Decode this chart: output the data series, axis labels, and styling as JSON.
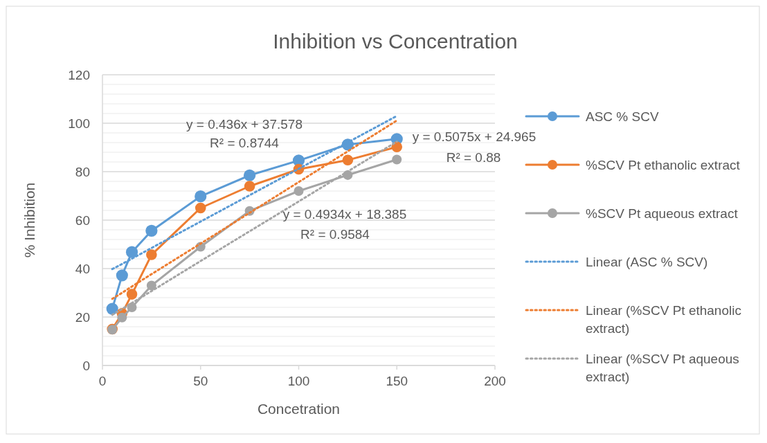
{
  "chart_data": {
    "type": "line",
    "title": "Inhibition vs Concentration",
    "xlabel": "Concetration",
    "ylabel": "% Inhibition",
    "x": [
      5,
      10,
      15,
      25,
      50,
      75,
      100,
      125,
      150
    ],
    "xlim": [
      0,
      200
    ],
    "xticks": [
      0,
      50,
      100,
      150,
      200
    ],
    "ylim": [
      0,
      120
    ],
    "yticks": [
      0,
      20,
      40,
      60,
      80,
      100,
      120
    ],
    "grid": "y",
    "legend": "right",
    "marker": "circle",
    "series": [
      {
        "name": "ASC % SCV",
        "color": "#5b9bd5",
        "values": [
          23.4,
          37.2,
          46.8,
          55.6,
          69.8,
          78.5,
          84.6,
          91.2,
          93.5
        ]
      },
      {
        "name": "%SCV Pt ethanolic extract",
        "color": "#ed7d31",
        "values": [
          15,
          21.5,
          29.4,
          45.7,
          65,
          74,
          81,
          84.8,
          90.2
        ]
      },
      {
        "name": "%SCV  Pt aqueous extract",
        "color": "#a5a5a5",
        "values": [
          14.8,
          19.8,
          24,
          33,
          49,
          63.8,
          72,
          78.6,
          85
        ]
      },
      {
        "name": "Linear (ASC % SCV)",
        "color": "#5b9bd5",
        "values": [
          39.8,
          41.9,
          44.1,
          48.5,
          59.4,
          70.3,
          81.2,
          92.1,
          103
        ],
        "line_style": "dotted",
        "marker": "none"
      },
      {
        "name": "Linear (%SCV Pt ethanolic extract)",
        "color": "#ed7d31",
        "values": [
          27.5,
          30,
          32.6,
          37.7,
          50.3,
          63,
          75.7,
          88.4,
          101.1
        ],
        "line_style": "dotted",
        "marker": "none"
      },
      {
        "name": "Linear (%SCV  Pt aqueous extract)",
        "color": "#a5a5a5",
        "values": [
          20.9,
          23.3,
          25.8,
          30.7,
          43.1,
          55.4,
          67.7,
          80.1,
          92.4
        ],
        "line_style": "dotted",
        "marker": "none"
      }
    ],
    "annotations": [
      "y = 0.436x + 37.578",
      "R² = 0.8744",
      "y = 0.5075x + 24.965",
      "R² = 0.88",
      "y = 0.4934x + 18.385",
      "R² = 0.9584"
    ]
  }
}
